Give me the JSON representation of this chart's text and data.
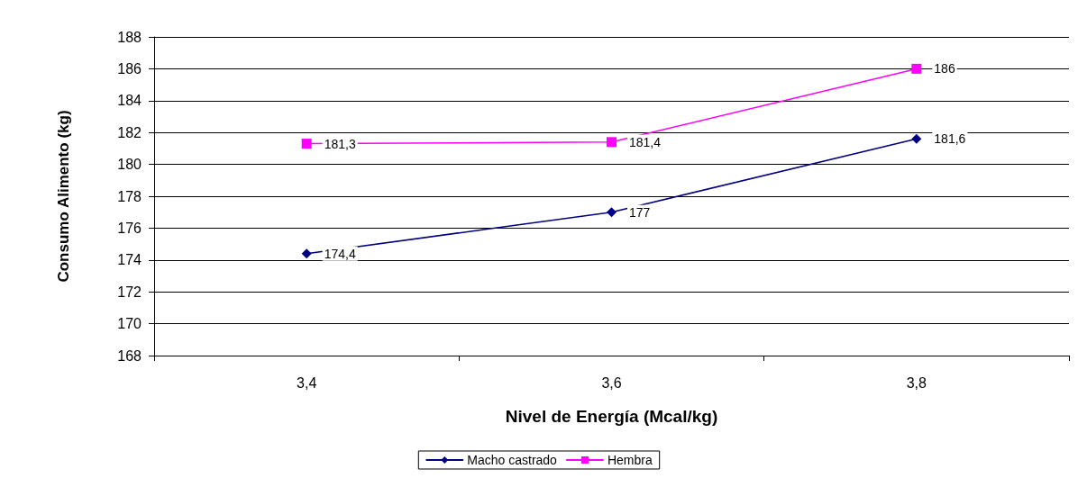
{
  "chart_data": {
    "type": "line",
    "xlabel": "Nivel de Energía (Mcal/kg)",
    "ylabel": "Consumo Alimento (kg)",
    "categories": [
      "3,4",
      "3,6",
      "3,8"
    ],
    "series": [
      {
        "name": "Macho castrado",
        "color": "#000080",
        "marker": "diamond",
        "values": [
          174.4,
          177,
          181.6
        ],
        "value_labels": [
          "174,4",
          "177",
          "181,6"
        ]
      },
      {
        "name": "Hembra",
        "color": "#ff00ff",
        "marker": "square",
        "values": [
          181.3,
          181.4,
          186
        ],
        "value_labels": [
          "181,3",
          "181,4",
          "186"
        ]
      }
    ],
    "ylim": [
      168,
      188
    ],
    "yticks": [
      168,
      170,
      172,
      174,
      176,
      178,
      180,
      182,
      184,
      186,
      188
    ],
    "grid": "y",
    "legend": "bottom",
    "line_style": "solid"
  }
}
